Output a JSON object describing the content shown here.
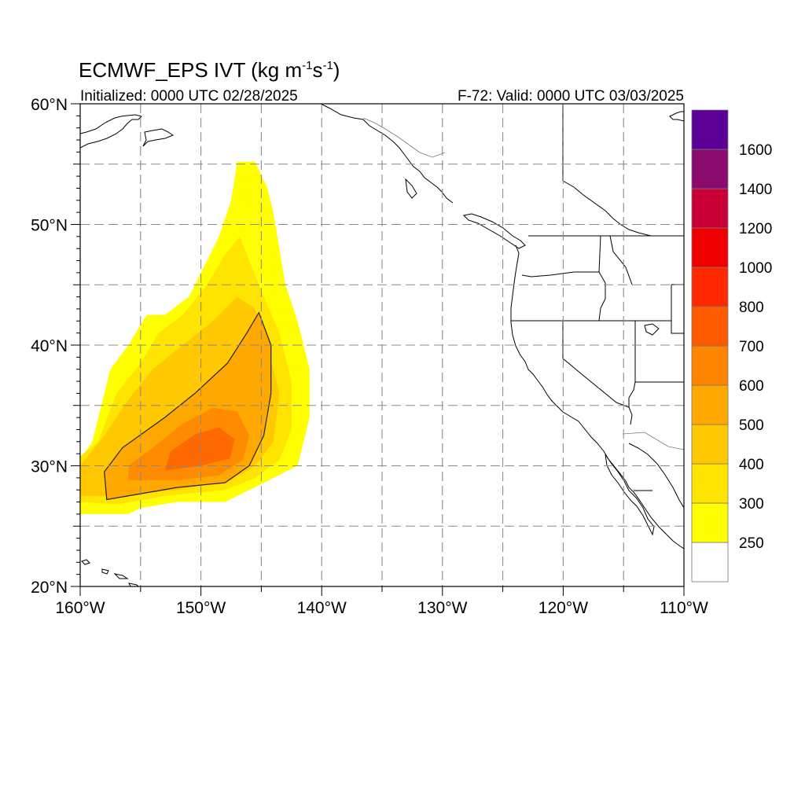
{
  "title": {
    "prefix": "ECMWF_EPS IVT (kg m",
    "sup1": "-1",
    "mid": "s",
    "sup2": "-1",
    "suffix": ")"
  },
  "subtitle_left": "Initialized: 0000 UTC 02/28/2025",
  "subtitle_right": "F-72: Valid: 0000 UTC 03/03/2025",
  "map": {
    "lon_range": [
      -160,
      -110
    ],
    "lat_range": [
      20,
      60
    ],
    "lon_labels": [
      {
        "lon": -160,
        "text": "160°W"
      },
      {
        "lon": -150,
        "text": "150°W"
      },
      {
        "lon": -140,
        "text": "140°W"
      },
      {
        "lon": -130,
        "text": "130°W"
      },
      {
        "lon": -120,
        "text": "120°W"
      },
      {
        "lon": -110,
        "text": "110°W"
      }
    ],
    "lat_labels": [
      {
        "lat": 60,
        "text": "60°N"
      },
      {
        "lat": 50,
        "text": "50°N"
      },
      {
        "lat": 40,
        "text": "40°N"
      },
      {
        "lat": 30,
        "text": "30°N"
      },
      {
        "lat": 20,
        "text": "20°N"
      }
    ],
    "grid_lons": [
      -155,
      -150,
      -145,
      -140,
      -135,
      -130,
      -125,
      -120,
      -115
    ],
    "grid_lats": [
      25,
      30,
      35,
      40,
      45,
      50,
      55
    ]
  },
  "colorbar": {
    "colors": [
      "#ffffff",
      "#ffff00",
      "#ffe400",
      "#ffc800",
      "#ffa800",
      "#ff8400",
      "#ff5a00",
      "#ff2800",
      "#ee0000",
      "#c80036",
      "#8a0a6e",
      "#5a0096"
    ],
    "labels": [
      "250",
      "300",
      "400",
      "500",
      "600",
      "700",
      "800",
      "1000",
      "1200",
      "1400",
      "1600"
    ]
  },
  "ivt_field": {
    "description_levels": [
      250,
      300,
      400,
      500,
      600,
      700
    ],
    "plume_250": [
      [
        -160,
        26
      ],
      [
        -156,
        26
      ],
      [
        -155,
        26.5
      ],
      [
        -152,
        27
      ],
      [
        -148,
        27
      ],
      [
        -146,
        28
      ],
      [
        -144,
        29
      ],
      [
        -142,
        30
      ],
      [
        -141.5,
        32
      ],
      [
        -141,
        34
      ],
      [
        -141,
        38
      ],
      [
        -142,
        42
      ],
      [
        -143,
        45
      ],
      [
        -143.5,
        48
      ],
      [
        -144,
        51
      ],
      [
        -144.5,
        53
      ],
      [
        -145.5,
        55.2
      ],
      [
        -147,
        55.2
      ],
      [
        -147.5,
        52
      ],
      [
        -148.5,
        49
      ],
      [
        -149.5,
        47
      ],
      [
        -151,
        44
      ],
      [
        -153,
        42.5
      ],
      [
        -154.5,
        42.5
      ],
      [
        -156,
        40
      ],
      [
        -157.5,
        38
      ],
      [
        -158,
        36
      ],
      [
        -159,
        32
      ],
      [
        -160,
        30.5
      ]
    ],
    "plume_300": [
      [
        -160,
        27
      ],
      [
        -157,
        26.8
      ],
      [
        -153,
        27.5
      ],
      [
        -148,
        28
      ],
      [
        -145.5,
        29
      ],
      [
        -143.5,
        30.5
      ],
      [
        -142.5,
        33
      ],
      [
        -142.5,
        37
      ],
      [
        -143.5,
        41
      ],
      [
        -145,
        44.5
      ],
      [
        -146,
        47
      ],
      [
        -146.8,
        49
      ],
      [
        -148,
        47.5
      ],
      [
        -149.5,
        45
      ],
      [
        -151.5,
        42.5
      ],
      [
        -153.5,
        41
      ],
      [
        -155,
        38.5
      ],
      [
        -157,
        36
      ],
      [
        -158.5,
        32
      ],
      [
        -160,
        30.8
      ]
    ],
    "plume_400": [
      [
        -160,
        27.5
      ],
      [
        -157,
        27.5
      ],
      [
        -152,
        28
      ],
      [
        -147.5,
        28.8
      ],
      [
        -145.5,
        30
      ],
      [
        -144,
        32
      ],
      [
        -143.5,
        36
      ],
      [
        -144.5,
        40
      ],
      [
        -145.5,
        43
      ],
      [
        -147,
        44
      ],
      [
        -149,
        42
      ],
      [
        -151.5,
        40
      ],
      [
        -154,
        38
      ],
      [
        -156,
        35.5
      ],
      [
        -158,
        32.5
      ],
      [
        -160,
        30
      ]
    ],
    "plume_500": [
      [
        -157.8,
        27.2
      ],
      [
        -152,
        28.2
      ],
      [
        -148,
        28.6
      ],
      [
        -146,
        30
      ],
      [
        -144.8,
        32.5
      ],
      [
        -144.2,
        36
      ],
      [
        -144.2,
        40
      ],
      [
        -145.2,
        42.7
      ],
      [
        -146.2,
        41
      ],
      [
        -147.8,
        38.5
      ],
      [
        -150.5,
        36
      ],
      [
        -153,
        34
      ],
      [
        -156.5,
        31.5
      ],
      [
        -158,
        29.5
      ]
    ],
    "plume_600": [
      [
        -156,
        28.8
      ],
      [
        -152,
        28.8
      ],
      [
        -148.5,
        29.2
      ],
      [
        -146.5,
        30.5
      ],
      [
        -146,
        32.5
      ],
      [
        -147,
        34.5
      ],
      [
        -149,
        34.8
      ],
      [
        -151.5,
        33.5
      ],
      [
        -154,
        31.5
      ],
      [
        -156,
        30
      ]
    ],
    "plume_700": [
      [
        -153,
        29.6
      ],
      [
        -150,
        30
      ],
      [
        -147.6,
        30.6
      ],
      [
        -147.2,
        32.2
      ],
      [
        -148.5,
        33.2
      ],
      [
        -150.5,
        32.6
      ],
      [
        -152.5,
        31.2
      ]
    ]
  }
}
